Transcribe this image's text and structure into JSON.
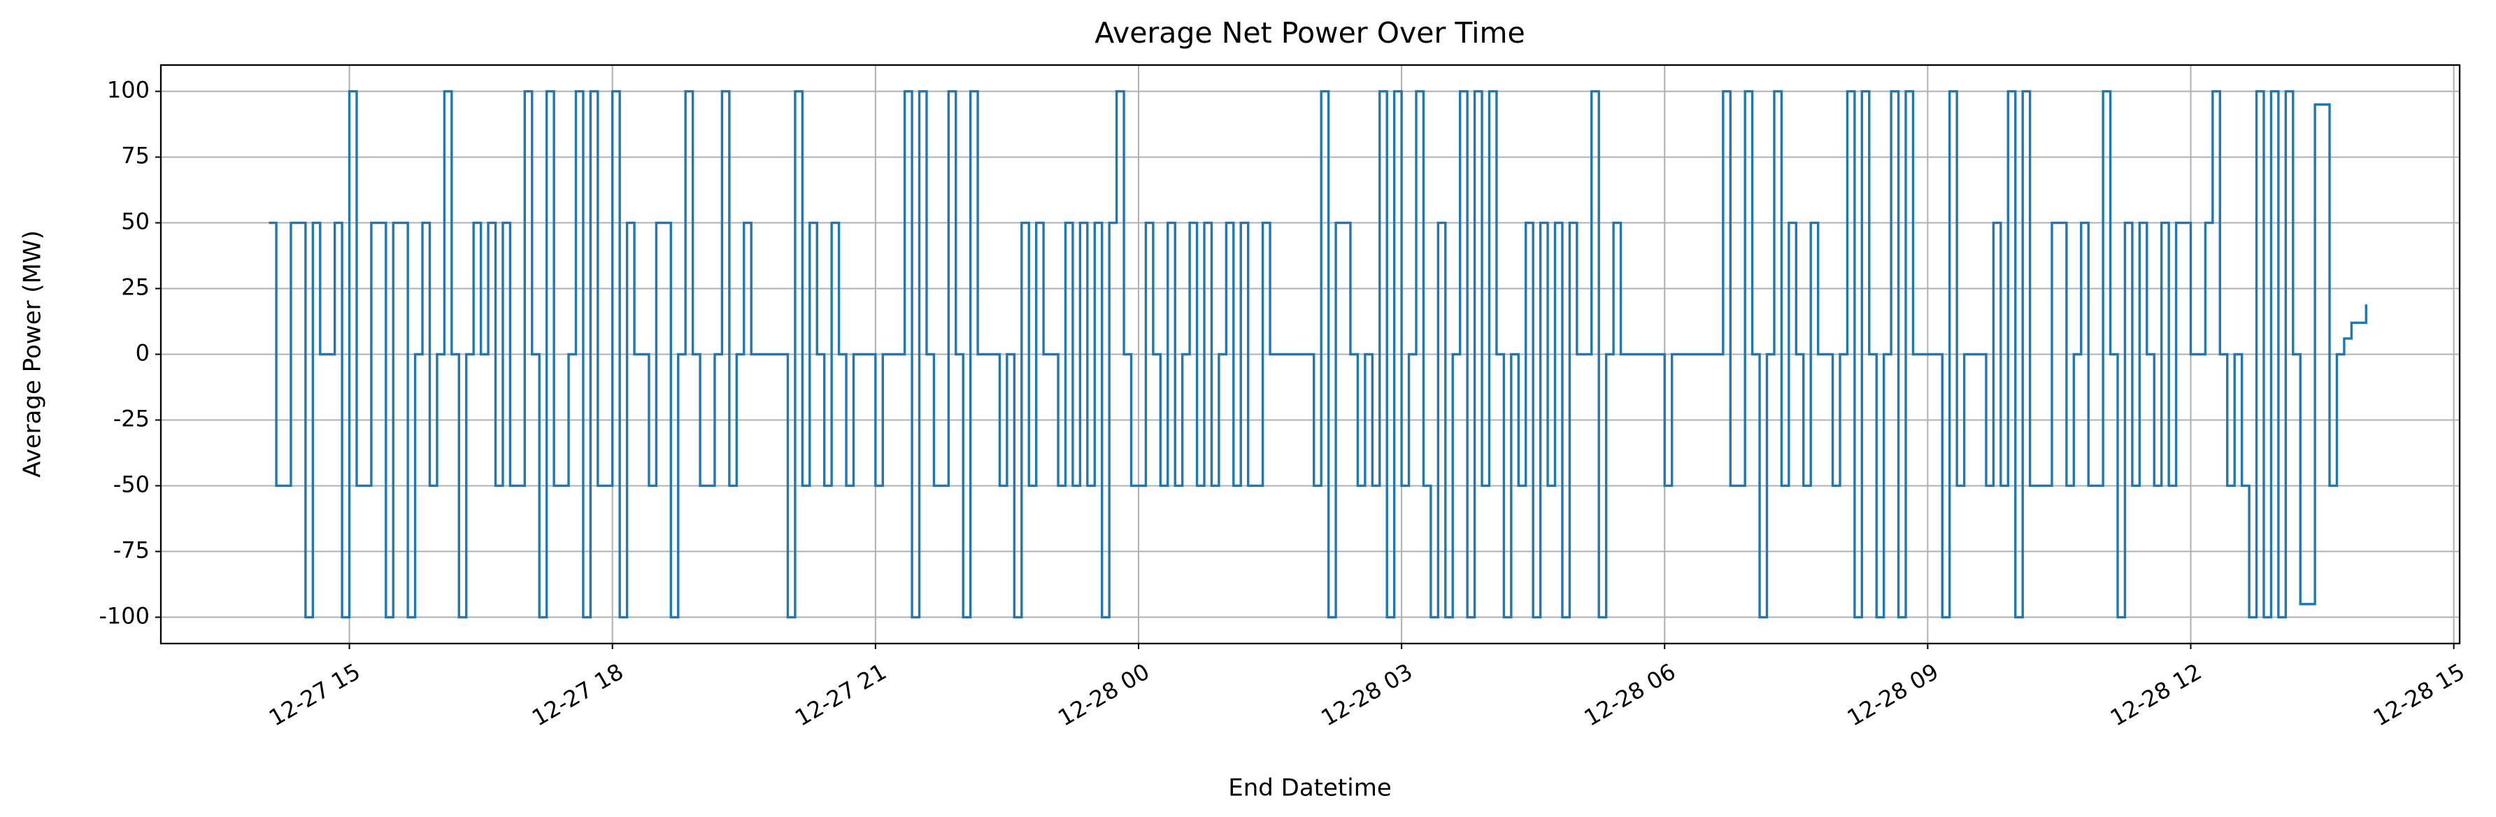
{
  "chart_data": {
    "type": "line",
    "step": "post",
    "title": "Average Net Power Over Time",
    "xlabel": "End Datetime",
    "ylabel": "Average Power (MW)",
    "grid": true,
    "xlim": [
      "12-27 12:51",
      "12-28 15:04"
    ],
    "xticks": [
      "12-27 15",
      "12-27 18",
      "12-27 21",
      "12-28 00",
      "12-28 03",
      "12-28 06",
      "12-28 09",
      "12-28 12",
      "12-28 15"
    ],
    "ylim": [
      -110,
      110
    ],
    "yticks": [
      -100,
      -75,
      -50,
      -25,
      0,
      25,
      50,
      75,
      100
    ],
    "x": [
      "12-27 14:05",
      "12-27 14:10",
      "12-27 14:15",
      "12-27 14:20",
      "12-27 14:25",
      "12-27 14:30",
      "12-27 14:35",
      "12-27 14:40",
      "12-27 14:45",
      "12-27 14:50",
      "12-27 14:55",
      "12-27 15:00",
      "12-27 15:05",
      "12-27 15:10",
      "12-27 15:15",
      "12-27 15:20",
      "12-27 15:25",
      "12-27 15:30",
      "12-27 15:35",
      "12-27 15:40",
      "12-27 15:45",
      "12-27 15:50",
      "12-27 15:55",
      "12-27 16:00",
      "12-27 16:05",
      "12-27 16:10",
      "12-27 16:15",
      "12-27 16:20",
      "12-27 16:25",
      "12-27 16:30",
      "12-27 16:35",
      "12-27 16:40",
      "12-27 16:45",
      "12-27 16:50",
      "12-27 16:55",
      "12-27 17:00",
      "12-27 17:05",
      "12-27 17:10",
      "12-27 17:15",
      "12-27 17:20",
      "12-27 17:25",
      "12-27 17:30",
      "12-27 17:35",
      "12-27 17:40",
      "12-27 17:45",
      "12-27 17:50",
      "12-27 17:55",
      "12-27 18:00",
      "12-27 18:05",
      "12-27 18:10",
      "12-27 18:15",
      "12-27 18:20",
      "12-27 18:25",
      "12-27 18:30",
      "12-27 18:35",
      "12-27 18:40",
      "12-27 18:45",
      "12-27 18:50",
      "12-27 18:55",
      "12-27 19:00",
      "12-27 19:05",
      "12-27 19:10",
      "12-27 19:15",
      "12-27 19:20",
      "12-27 19:25",
      "12-27 19:30",
      "12-27 19:35",
      "12-27 19:40",
      "12-27 19:45",
      "12-27 19:50",
      "12-27 19:55",
      "12-27 20:00",
      "12-27 20:05",
      "12-27 20:10",
      "12-27 20:15",
      "12-27 20:20",
      "12-27 20:25",
      "12-27 20:30",
      "12-27 20:35",
      "12-27 20:40",
      "12-27 20:45",
      "12-27 20:50",
      "12-27 20:55",
      "12-27 21:00",
      "12-27 21:05",
      "12-27 21:10",
      "12-27 21:15",
      "12-27 21:20",
      "12-27 21:25",
      "12-27 21:30",
      "12-27 21:35",
      "12-27 21:40",
      "12-27 21:45",
      "12-27 21:50",
      "12-27 21:55",
      "12-27 22:00",
      "12-27 22:05",
      "12-27 22:10",
      "12-27 22:15",
      "12-27 22:20",
      "12-27 22:25",
      "12-27 22:30",
      "12-27 22:35",
      "12-27 22:40",
      "12-27 22:45",
      "12-27 22:50",
      "12-27 22:55",
      "12-27 23:00",
      "12-27 23:05",
      "12-27 23:10",
      "12-27 23:15",
      "12-27 23:20",
      "12-27 23:25",
      "12-27 23:30",
      "12-27 23:35",
      "12-27 23:40",
      "12-27 23:45",
      "12-27 23:50",
      "12-27 23:55",
      "12-28 00:00",
      "12-28 00:05",
      "12-28 00:10",
      "12-28 00:15",
      "12-28 00:20",
      "12-28 00:25",
      "12-28 00:30",
      "12-28 00:35",
      "12-28 00:40",
      "12-28 00:45",
      "12-28 00:50",
      "12-28 00:55",
      "12-28 01:00",
      "12-28 01:05",
      "12-28 01:10",
      "12-28 01:15",
      "12-28 01:20",
      "12-28 01:25",
      "12-28 01:30",
      "12-28 01:35",
      "12-28 01:40",
      "12-28 01:45",
      "12-28 01:50",
      "12-28 01:55",
      "12-28 02:00",
      "12-28 02:05",
      "12-28 02:10",
      "12-28 02:15",
      "12-28 02:20",
      "12-28 02:25",
      "12-28 02:30",
      "12-28 02:35",
      "12-28 02:40",
      "12-28 02:45",
      "12-28 02:50",
      "12-28 02:55",
      "12-28 03:00",
      "12-28 03:05",
      "12-28 03:10",
      "12-28 03:15",
      "12-28 03:20",
      "12-28 03:25",
      "12-28 03:30",
      "12-28 03:35",
      "12-28 03:40",
      "12-28 03:45",
      "12-28 03:50",
      "12-28 03:55",
      "12-28 04:00",
      "12-28 04:05",
      "12-28 04:10",
      "12-28 04:15",
      "12-28 04:20",
      "12-28 04:25",
      "12-28 04:30",
      "12-28 04:35",
      "12-28 04:40",
      "12-28 04:45",
      "12-28 04:50",
      "12-28 04:55",
      "12-28 05:00",
      "12-28 05:05",
      "12-28 05:10",
      "12-28 05:15",
      "12-28 05:20",
      "12-28 05:25",
      "12-28 05:30",
      "12-28 05:35",
      "12-28 05:40",
      "12-28 05:45",
      "12-28 05:50",
      "12-28 05:55",
      "12-28 06:00",
      "12-28 06:05",
      "12-28 06:10",
      "12-28 06:15",
      "12-28 06:20",
      "12-28 06:25",
      "12-28 06:30",
      "12-28 06:35",
      "12-28 06:40",
      "12-28 06:45",
      "12-28 06:50",
      "12-28 06:55",
      "12-28 07:00",
      "12-28 07:05",
      "12-28 07:10",
      "12-28 07:15",
      "12-28 07:20",
      "12-28 07:25",
      "12-28 07:30",
      "12-28 07:35",
      "12-28 07:40",
      "12-28 07:45",
      "12-28 07:50",
      "12-28 07:55",
      "12-28 08:00",
      "12-28 08:05",
      "12-28 08:10",
      "12-28 08:15",
      "12-28 08:20",
      "12-28 08:25",
      "12-28 08:30",
      "12-28 08:35",
      "12-28 08:40",
      "12-28 08:45",
      "12-28 08:50",
      "12-28 08:55",
      "12-28 09:00",
      "12-28 09:05",
      "12-28 09:10",
      "12-28 09:15",
      "12-28 09:20",
      "12-28 09:25",
      "12-28 09:30",
      "12-28 09:35",
      "12-28 09:40",
      "12-28 09:45",
      "12-28 09:50",
      "12-28 09:55",
      "12-28 10:00",
      "12-28 10:05",
      "12-28 10:10",
      "12-28 10:15",
      "12-28 10:20",
      "12-28 10:25",
      "12-28 10:30",
      "12-28 10:35",
      "12-28 10:40",
      "12-28 10:45",
      "12-28 10:50",
      "12-28 10:55",
      "12-28 11:00",
      "12-28 11:05",
      "12-28 11:10",
      "12-28 11:15",
      "12-28 11:20",
      "12-28 11:25",
      "12-28 11:30",
      "12-28 11:35",
      "12-28 11:40",
      "12-28 11:45",
      "12-28 11:50",
      "12-28 11:55",
      "12-28 12:00",
      "12-28 12:05",
      "12-28 12:10",
      "12-28 12:15",
      "12-28 12:20",
      "12-28 12:25",
      "12-28 12:30",
      "12-28 12:35",
      "12-28 12:40",
      "12-28 12:45",
      "12-28 12:50",
      "12-28 12:55",
      "12-28 13:00",
      "12-28 13:05",
      "12-28 13:10",
      "12-28 13:15",
      "12-28 13:20",
      "12-28 13:25",
      "12-28 13:30",
      "12-28 13:35",
      "12-28 13:40",
      "12-28 13:45",
      "12-28 13:50",
      "12-28 13:55",
      "12-28 14:00"
    ],
    "color": "#1f77b4",
    "values": [
      50,
      -50,
      -50,
      50,
      50,
      -100,
      50,
      0,
      0,
      50,
      -100,
      100,
      -50,
      -50,
      50,
      50,
      -100,
      50,
      50,
      -100,
      0,
      50,
      -50,
      0,
      100,
      0,
      -100,
      0,
      50,
      0,
      50,
      -50,
      50,
      -50,
      -50,
      100,
      0,
      -100,
      100,
      -50,
      -50,
      0,
      100,
      -100,
      100,
      -50,
      -50,
      100,
      -100,
      50,
      0,
      0,
      -50,
      50,
      50,
      -100,
      0,
      100,
      0,
      -50,
      -50,
      0,
      100,
      -50,
      0,
      50,
      0,
      0,
      0,
      0,
      0,
      -100,
      100,
      -50,
      50,
      0,
      -50,
      50,
      0,
      -50,
      0,
      0,
      0,
      -50,
      0,
      0,
      0,
      100,
      -100,
      100,
      0,
      -50,
      -50,
      100,
      0,
      -100,
      100,
      0,
      0,
      0,
      -50,
      0,
      -100,
      50,
      -50,
      50,
      0,
      0,
      -50,
      50,
      -50,
      50,
      -50,
      50,
      -100,
      50,
      100,
      0,
      -50,
      -50,
      50,
      0,
      -50,
      50,
      -50,
      0,
      50,
      -50,
      50,
      -50,
      0,
      50,
      -50,
      50,
      -50,
      -50,
      50,
      0,
      0,
      0,
      0,
      0,
      0,
      -50,
      100,
      -100,
      50,
      50,
      0,
      -50,
      0,
      -50,
      100,
      -100,
      100,
      -50,
      0,
      100,
      -50,
      -100,
      50,
      -100,
      0,
      100,
      -100,
      100,
      -50,
      100,
      0,
      -100,
      0,
      -50,
      50,
      -100,
      50,
      -50,
      50,
      -100,
      50,
      0,
      0,
      100,
      -100,
      0,
      50,
      0,
      0,
      0,
      0,
      0,
      0,
      -50,
      0,
      0,
      0,
      0,
      0,
      0,
      0,
      100,
      -50,
      -50,
      100,
      0,
      -100,
      0,
      100,
      -50,
      50,
      0,
      -50,
      50,
      0,
      0,
      -50,
      0,
      100,
      -100,
      100,
      0,
      -100,
      0,
      100,
      -100,
      100,
      0,
      0,
      0,
      0,
      -100,
      100,
      -50,
      0,
      0,
      0,
      -50,
      50,
      -50,
      100,
      -100,
      100,
      -50,
      -50,
      -50,
      50,
      50,
      -50,
      0,
      50,
      -50,
      -50,
      100,
      0,
      -100,
      50,
      -50,
      50,
      0,
      -50,
      50,
      -50,
      50,
      50,
      0,
      0,
      50,
      100,
      0,
      -50,
      0,
      -50,
      -100,
      100,
      -100,
      100,
      -100,
      100,
      0,
      -95,
      -95,
      95,
      95,
      -50,
      0,
      6,
      12,
      12,
      19
    ]
  }
}
